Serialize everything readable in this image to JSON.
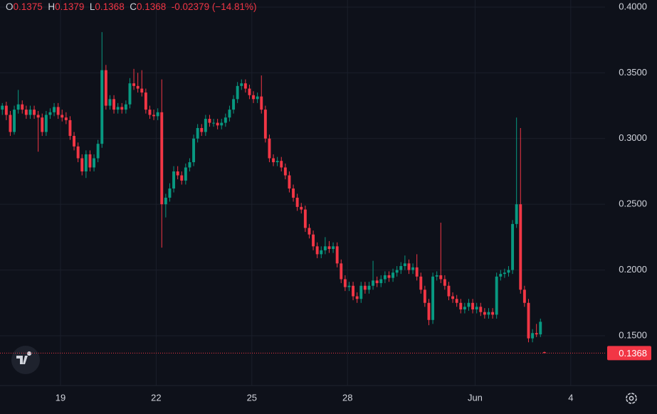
{
  "chart_data": {
    "type": "candlestick",
    "header": {
      "open_label": "O",
      "high_label": "H",
      "low_label": "L",
      "close_label": "C",
      "change": "-0.02379",
      "change_pct": "(−14.81%)"
    },
    "up_color": "#089981",
    "down_color": "#f23645",
    "grid": true,
    "ylim": [
      0.1121,
      0.4054
    ],
    "yticks": [
      {
        "value": 0.15,
        "label": "0.1500"
      },
      {
        "value": 0.2,
        "label": "0.2000"
      },
      {
        "value": 0.25,
        "label": "0.2500"
      },
      {
        "value": 0.3,
        "label": "0.3000"
      },
      {
        "value": 0.35,
        "label": "0.3500"
      },
      {
        "value": 0.4,
        "label": "0.4000"
      }
    ],
    "xlim": [
      -0.58,
      151.2
    ],
    "xticks": [
      {
        "value": 14.6,
        "label": "19"
      },
      {
        "value": 38.6,
        "label": "22"
      },
      {
        "value": 62.6,
        "label": "25"
      },
      {
        "value": 86.6,
        "label": "28"
      },
      {
        "value": 118.6,
        "label": "Jun"
      },
      {
        "value": 142.6,
        "label": "4"
      }
    ],
    "ohlc": [
      [
        0.322,
        0.327,
        0.318,
        0.325
      ],
      [
        0.325,
        0.328,
        0.314,
        0.318
      ],
      [
        0.318,
        0.321,
        0.302,
        0.305
      ],
      [
        0.305,
        0.325,
        0.303,
        0.322
      ],
      [
        0.322,
        0.337,
        0.319,
        0.326
      ],
      [
        0.326,
        0.329,
        0.319,
        0.322
      ],
      [
        0.322,
        0.325,
        0.315,
        0.318
      ],
      [
        0.318,
        0.325,
        0.315,
        0.322
      ],
      [
        0.322,
        0.325,
        0.315,
        0.318
      ],
      [
        0.318,
        0.321,
        0.29,
        0.316
      ],
      [
        0.316,
        0.319,
        0.302,
        0.305
      ],
      [
        0.305,
        0.321,
        0.302,
        0.318
      ],
      [
        0.318,
        0.323,
        0.315,
        0.32
      ],
      [
        0.32,
        0.327,
        0.317,
        0.324
      ],
      [
        0.324,
        0.327,
        0.315,
        0.318
      ],
      [
        0.318,
        0.322,
        0.313,
        0.316
      ],
      [
        0.316,
        0.32,
        0.311,
        0.314
      ],
      [
        0.314,
        0.317,
        0.299,
        0.302
      ],
      [
        0.302,
        0.305,
        0.291,
        0.294
      ],
      [
        0.294,
        0.297,
        0.282,
        0.285
      ],
      [
        0.285,
        0.288,
        0.272,
        0.275
      ],
      [
        0.275,
        0.291,
        0.27,
        0.288
      ],
      [
        0.288,
        0.291,
        0.275,
        0.278
      ],
      [
        0.278,
        0.288,
        0.275,
        0.285
      ],
      [
        0.285,
        0.299,
        0.282,
        0.296
      ],
      [
        0.296,
        0.381,
        0.293,
        0.352
      ],
      [
        0.352,
        0.356,
        0.322,
        0.325
      ],
      [
        0.325,
        0.333,
        0.322,
        0.33
      ],
      [
        0.33,
        0.333,
        0.319,
        0.322
      ],
      [
        0.322,
        0.327,
        0.319,
        0.324
      ],
      [
        0.324,
        0.327,
        0.319,
        0.322
      ],
      [
        0.322,
        0.329,
        0.319,
        0.326
      ],
      [
        0.326,
        0.346,
        0.323,
        0.342
      ],
      [
        0.342,
        0.353,
        0.337,
        0.34
      ],
      [
        0.34,
        0.35,
        0.335,
        0.338
      ],
      [
        0.338,
        0.352,
        0.332,
        0.335
      ],
      [
        0.335,
        0.338,
        0.319,
        0.322
      ],
      [
        0.322,
        0.325,
        0.315,
        0.318
      ],
      [
        0.318,
        0.322,
        0.314,
        0.317
      ],
      [
        0.317,
        0.323,
        0.314,
        0.32
      ],
      [
        0.32,
        0.345,
        0.217,
        0.25
      ],
      [
        0.25,
        0.258,
        0.24,
        0.255
      ],
      [
        0.255,
        0.266,
        0.252,
        0.262
      ],
      [
        0.262,
        0.279,
        0.259,
        0.275
      ],
      [
        0.275,
        0.279,
        0.269,
        0.272
      ],
      [
        0.272,
        0.275,
        0.265,
        0.268
      ],
      [
        0.268,
        0.281,
        0.265,
        0.278
      ],
      [
        0.278,
        0.285,
        0.275,
        0.282
      ],
      [
        0.282,
        0.303,
        0.279,
        0.3
      ],
      [
        0.3,
        0.311,
        0.297,
        0.308
      ],
      [
        0.308,
        0.311,
        0.302,
        0.305
      ],
      [
        0.305,
        0.318,
        0.302,
        0.315
      ],
      [
        0.315,
        0.318,
        0.309,
        0.312
      ],
      [
        0.312,
        0.315,
        0.309,
        0.312
      ],
      [
        0.312,
        0.315,
        0.307,
        0.31
      ],
      [
        0.31,
        0.315,
        0.307,
        0.312
      ],
      [
        0.312,
        0.319,
        0.309,
        0.316
      ],
      [
        0.316,
        0.325,
        0.313,
        0.322
      ],
      [
        0.322,
        0.333,
        0.319,
        0.33
      ],
      [
        0.33,
        0.343,
        0.327,
        0.34
      ],
      [
        0.34,
        0.345,
        0.337,
        0.342
      ],
      [
        0.342,
        0.345,
        0.335,
        0.338
      ],
      [
        0.338,
        0.341,
        0.33,
        0.333
      ],
      [
        0.333,
        0.336,
        0.327,
        0.33
      ],
      [
        0.33,
        0.335,
        0.327,
        0.332
      ],
      [
        0.332,
        0.348,
        0.319,
        0.322
      ],
      [
        0.322,
        0.325,
        0.297,
        0.3
      ],
      [
        0.3,
        0.303,
        0.282,
        0.285
      ],
      [
        0.285,
        0.288,
        0.279,
        0.282
      ],
      [
        0.282,
        0.286,
        0.279,
        0.283
      ],
      [
        0.283,
        0.286,
        0.275,
        0.278
      ],
      [
        0.278,
        0.281,
        0.269,
        0.272
      ],
      [
        0.272,
        0.275,
        0.259,
        0.262
      ],
      [
        0.262,
        0.265,
        0.252,
        0.255
      ],
      [
        0.255,
        0.258,
        0.245,
        0.248
      ],
      [
        0.248,
        0.251,
        0.243,
        0.246
      ],
      [
        0.246,
        0.249,
        0.229,
        0.232
      ],
      [
        0.232,
        0.235,
        0.224,
        0.227
      ],
      [
        0.227,
        0.23,
        0.215,
        0.218
      ],
      [
        0.218,
        0.221,
        0.209,
        0.212
      ],
      [
        0.212,
        0.218,
        0.209,
        0.215
      ],
      [
        0.215,
        0.225,
        0.212,
        0.218
      ],
      [
        0.218,
        0.222,
        0.213,
        0.216
      ],
      [
        0.216,
        0.221,
        0.213,
        0.218
      ],
      [
        0.218,
        0.221,
        0.202,
        0.205
      ],
      [
        0.205,
        0.208,
        0.19,
        0.193
      ],
      [
        0.193,
        0.196,
        0.184,
        0.187
      ],
      [
        0.187,
        0.191,
        0.184,
        0.188
      ],
      [
        0.188,
        0.191,
        0.177,
        0.18
      ],
      [
        0.18,
        0.183,
        0.175,
        0.178
      ],
      [
        0.178,
        0.191,
        0.175,
        0.188
      ],
      [
        0.188,
        0.191,
        0.182,
        0.185
      ],
      [
        0.185,
        0.191,
        0.182,
        0.188
      ],
      [
        0.188,
        0.207,
        0.185,
        0.192
      ],
      [
        0.192,
        0.195,
        0.187,
        0.19
      ],
      [
        0.19,
        0.196,
        0.187,
        0.193
      ],
      [
        0.193,
        0.199,
        0.19,
        0.196
      ],
      [
        0.196,
        0.199,
        0.191,
        0.194
      ],
      [
        0.194,
        0.201,
        0.191,
        0.198
      ],
      [
        0.198,
        0.203,
        0.195,
        0.2
      ],
      [
        0.2,
        0.206,
        0.197,
        0.203
      ],
      [
        0.203,
        0.211,
        0.2,
        0.205
      ],
      [
        0.205,
        0.208,
        0.197,
        0.2
      ],
      [
        0.2,
        0.205,
        0.197,
        0.202
      ],
      [
        0.202,
        0.212,
        0.192,
        0.195
      ],
      [
        0.195,
        0.198,
        0.182,
        0.185
      ],
      [
        0.185,
        0.188,
        0.172,
        0.175
      ],
      [
        0.175,
        0.178,
        0.158,
        0.162
      ],
      [
        0.162,
        0.198,
        0.159,
        0.195
      ],
      [
        0.195,
        0.199,
        0.192,
        0.196
      ],
      [
        0.196,
        0.236,
        0.19,
        0.193
      ],
      [
        0.193,
        0.196,
        0.185,
        0.188
      ],
      [
        0.188,
        0.191,
        0.177,
        0.18
      ],
      [
        0.18,
        0.183,
        0.175,
        0.178
      ],
      [
        0.178,
        0.181,
        0.172,
        0.175
      ],
      [
        0.175,
        0.178,
        0.167,
        0.17
      ],
      [
        0.17,
        0.175,
        0.167,
        0.172
      ],
      [
        0.172,
        0.178,
        0.169,
        0.175
      ],
      [
        0.175,
        0.178,
        0.167,
        0.17
      ],
      [
        0.17,
        0.175,
        0.167,
        0.172
      ],
      [
        0.172,
        0.175,
        0.165,
        0.168
      ],
      [
        0.168,
        0.171,
        0.163,
        0.166
      ],
      [
        0.166,
        0.171,
        0.163,
        0.168
      ],
      [
        0.168,
        0.171,
        0.163,
        0.166
      ],
      [
        0.166,
        0.198,
        0.163,
        0.195
      ],
      [
        0.195,
        0.2,
        0.192,
        0.197
      ],
      [
        0.197,
        0.201,
        0.194,
        0.198
      ],
      [
        0.198,
        0.203,
        0.195,
        0.2
      ],
      [
        0.2,
        0.238,
        0.197,
        0.235
      ],
      [
        0.235,
        0.316,
        0.232,
        0.25
      ],
      [
        0.25,
        0.308,
        0.182,
        0.185
      ],
      [
        0.185,
        0.188,
        0.172,
        0.175
      ],
      [
        0.175,
        0.178,
        0.145,
        0.148
      ],
      [
        0.148,
        0.155,
        0.145,
        0.152
      ],
      [
        0.152,
        0.159,
        0.149,
        0.151
      ],
      [
        0.151,
        0.163,
        0.149,
        0.1606
      ],
      [
        0.1375,
        0.1379,
        0.1368,
        0.1368
      ]
    ]
  }
}
